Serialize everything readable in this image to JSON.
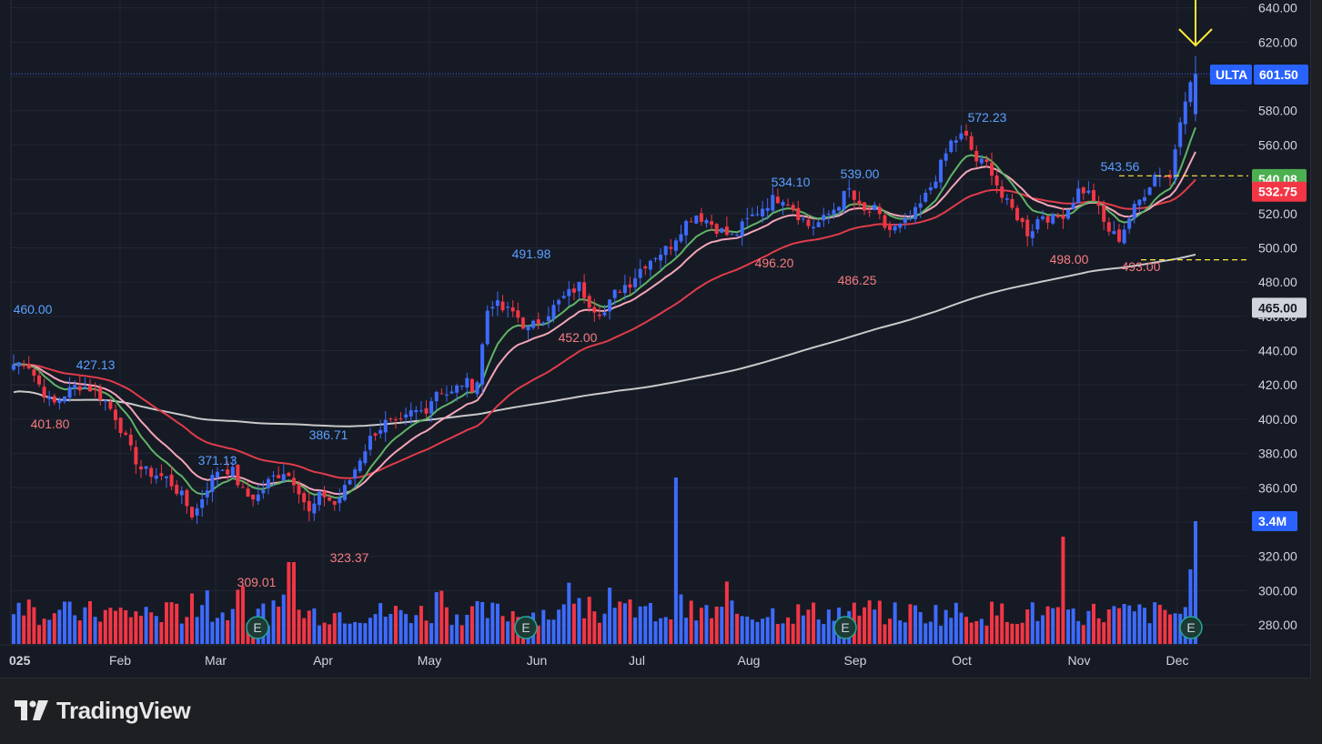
{
  "brand": {
    "name": "TradingView",
    "logo_icon": "tradingview-logo-icon"
  },
  "colors": {
    "background": "#161a25",
    "up": "#3d6bff",
    "down": "#f23645",
    "ema_green": "#5fb366",
    "ema_pink": "#f3a6b8",
    "ema_red": "#e03c4a",
    "sma_white": "#c9c9c9",
    "arrow": "#ffeb3b",
    "grid": "#232735"
  },
  "chart_data": {
    "type": "candlestick",
    "symbol": "ULTA",
    "year_label": "025",
    "ylim": [
      270,
      645
    ],
    "y_ticks": [
      "280.00",
      "300.00",
      "320.00",
      "340.00",
      "360.00",
      "380.00",
      "400.00",
      "420.00",
      "440.00",
      "460.00",
      "480.00",
      "500.00",
      "520.00",
      "540.00",
      "560.00",
      "580.00",
      "600.00",
      "620.00",
      "640.00"
    ],
    "x_labels": [
      "Feb",
      "Mar",
      "Apr",
      "May",
      "Jun",
      "Jul",
      "Aug",
      "Sep",
      "Oct",
      "Nov",
      "Dec"
    ],
    "price_badges": {
      "last": {
        "symbol": "ULTA",
        "value": "601.50"
      },
      "ema_red": "532.75",
      "ema_green": "540.08",
      "sma": "465.00",
      "volume": "3.4M"
    },
    "levels": {
      "upper_dashed": 542,
      "lower_dashed": 493,
      "last_price": 601.5
    },
    "annotations": [
      {
        "text": "460.00",
        "kind": "high"
      },
      {
        "text": "401.80",
        "kind": "low"
      },
      {
        "text": "427.13",
        "kind": "high"
      },
      {
        "text": "371.13",
        "kind": "high"
      },
      {
        "text": "309.01",
        "kind": "low"
      },
      {
        "text": "386.71",
        "kind": "high"
      },
      {
        "text": "323.37",
        "kind": "low"
      },
      {
        "text": "491.98",
        "kind": "high"
      },
      {
        "text": "452.00",
        "kind": "low"
      },
      {
        "text": "534.10",
        "kind": "high"
      },
      {
        "text": "496.20",
        "kind": "low"
      },
      {
        "text": "539.00",
        "kind": "high"
      },
      {
        "text": "486.25",
        "kind": "low"
      },
      {
        "text": "572.23",
        "kind": "high"
      },
      {
        "text": "498.00",
        "kind": "low"
      },
      {
        "text": "543.56",
        "kind": "high"
      },
      {
        "text": "493.00",
        "kind": "low"
      }
    ],
    "earnings_marker": "E",
    "close_keypoints": [
      432,
      434,
      420,
      408,
      415,
      420,
      418,
      412,
      401,
      383,
      370,
      368,
      365,
      356,
      343,
      360,
      372,
      370,
      355,
      355,
      365,
      370,
      363,
      345,
      357,
      350,
      362,
      378,
      392,
      398,
      396,
      404,
      405,
      418,
      414,
      422,
      418,
      470,
      464,
      462,
      452,
      458,
      465,
      472,
      478,
      466,
      462,
      476,
      480,
      490,
      496,
      500,
      512,
      520,
      516,
      510,
      506,
      515,
      522,
      528,
      530,
      520,
      512,
      516,
      524,
      534,
      520,
      522,
      510,
      512,
      518,
      530,
      545,
      562,
      566,
      550,
      548,
      528,
      520,
      508,
      520,
      516,
      522,
      535,
      530,
      512,
      505,
      520,
      532,
      545,
      540,
      585,
      601.5
    ]
  }
}
